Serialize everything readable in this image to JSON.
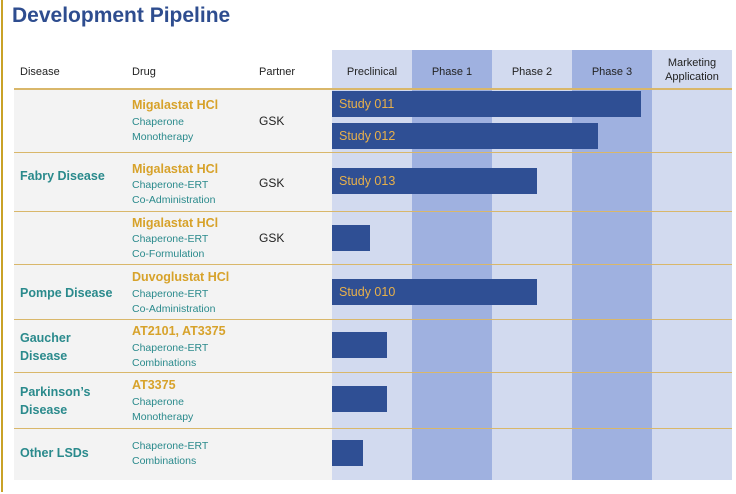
{
  "title": "Development Pipeline",
  "headers": {
    "disease": "Disease",
    "drug": "Drug",
    "partner": "Partner",
    "phases": [
      "Preclinical",
      "Phase 1",
      "Phase 2",
      "Phase 3",
      "Marketing Application"
    ]
  },
  "colors": {
    "title": "#2e4d8f",
    "disease_text": "#2a8a8c",
    "drug_text": "#d7a22a",
    "bar": "#2f4f94",
    "bar_label": "#e8b04a",
    "phase_light": "#d2daef",
    "phase_dark": "#9fb1e0",
    "separator": "#d9b76a"
  },
  "chart_data": {
    "type": "bar",
    "orientation": "horizontal",
    "x_stages": [
      "Preclinical",
      "Phase 1",
      "Phase 2",
      "Phase 3",
      "Marketing Application"
    ],
    "note_units": "progress in stages (0 = start of Preclinical, 5 = end of Marketing Application)",
    "groups": [
      {
        "disease": "Fabry Disease",
        "programs": [
          {
            "drug": "Migalastat HCl",
            "detail": [
              "Chaperone",
              "Monotherapy"
            ],
            "partner": "GSK",
            "studies": [
              {
                "label": "Study 011",
                "progress": 3.86
              },
              {
                "label": "Study 012",
                "progress": 3.33
              }
            ]
          },
          {
            "drug": "Migalastat HCl",
            "detail": [
              "Chaperone-ERT",
              "Co-Administration"
            ],
            "partner": "GSK",
            "studies": [
              {
                "label": "Study 013",
                "progress": 2.56
              }
            ]
          },
          {
            "drug": "Migalastat HCl",
            "detail": [
              "Chaperone-ERT",
              "Co-Formulation"
            ],
            "partner": "GSK",
            "studies": [
              {
                "label": "",
                "progress": 0.48
              }
            ]
          }
        ]
      },
      {
        "disease": "Pompe Disease",
        "programs": [
          {
            "drug": "Duvoglustat HCl",
            "detail": [
              "Chaperone-ERT",
              "Co-Administration"
            ],
            "partner": "",
            "studies": [
              {
                "label": "Study 010",
                "progress": 2.56
              }
            ]
          }
        ]
      },
      {
        "disease": "Gaucher Disease",
        "programs": [
          {
            "drug": "AT2101, AT3375",
            "detail": [
              "Chaperone-ERT",
              "Combinations"
            ],
            "partner": "",
            "studies": [
              {
                "label": "",
                "progress": 0.69
              }
            ]
          }
        ]
      },
      {
        "disease": "Parkinson’s Disease",
        "programs": [
          {
            "drug": "AT3375",
            "detail": [
              "Chaperone",
              "Monotherapy"
            ],
            "partner": "",
            "studies": [
              {
                "label": "",
                "progress": 0.69
              }
            ]
          }
        ]
      },
      {
        "disease": "Other LSDs",
        "programs": [
          {
            "drug": "",
            "detail": [
              "Chaperone-ERT",
              "Combinations"
            ],
            "partner": "",
            "studies": [
              {
                "label": "",
                "progress": 0.39
              }
            ]
          }
        ]
      }
    ]
  }
}
